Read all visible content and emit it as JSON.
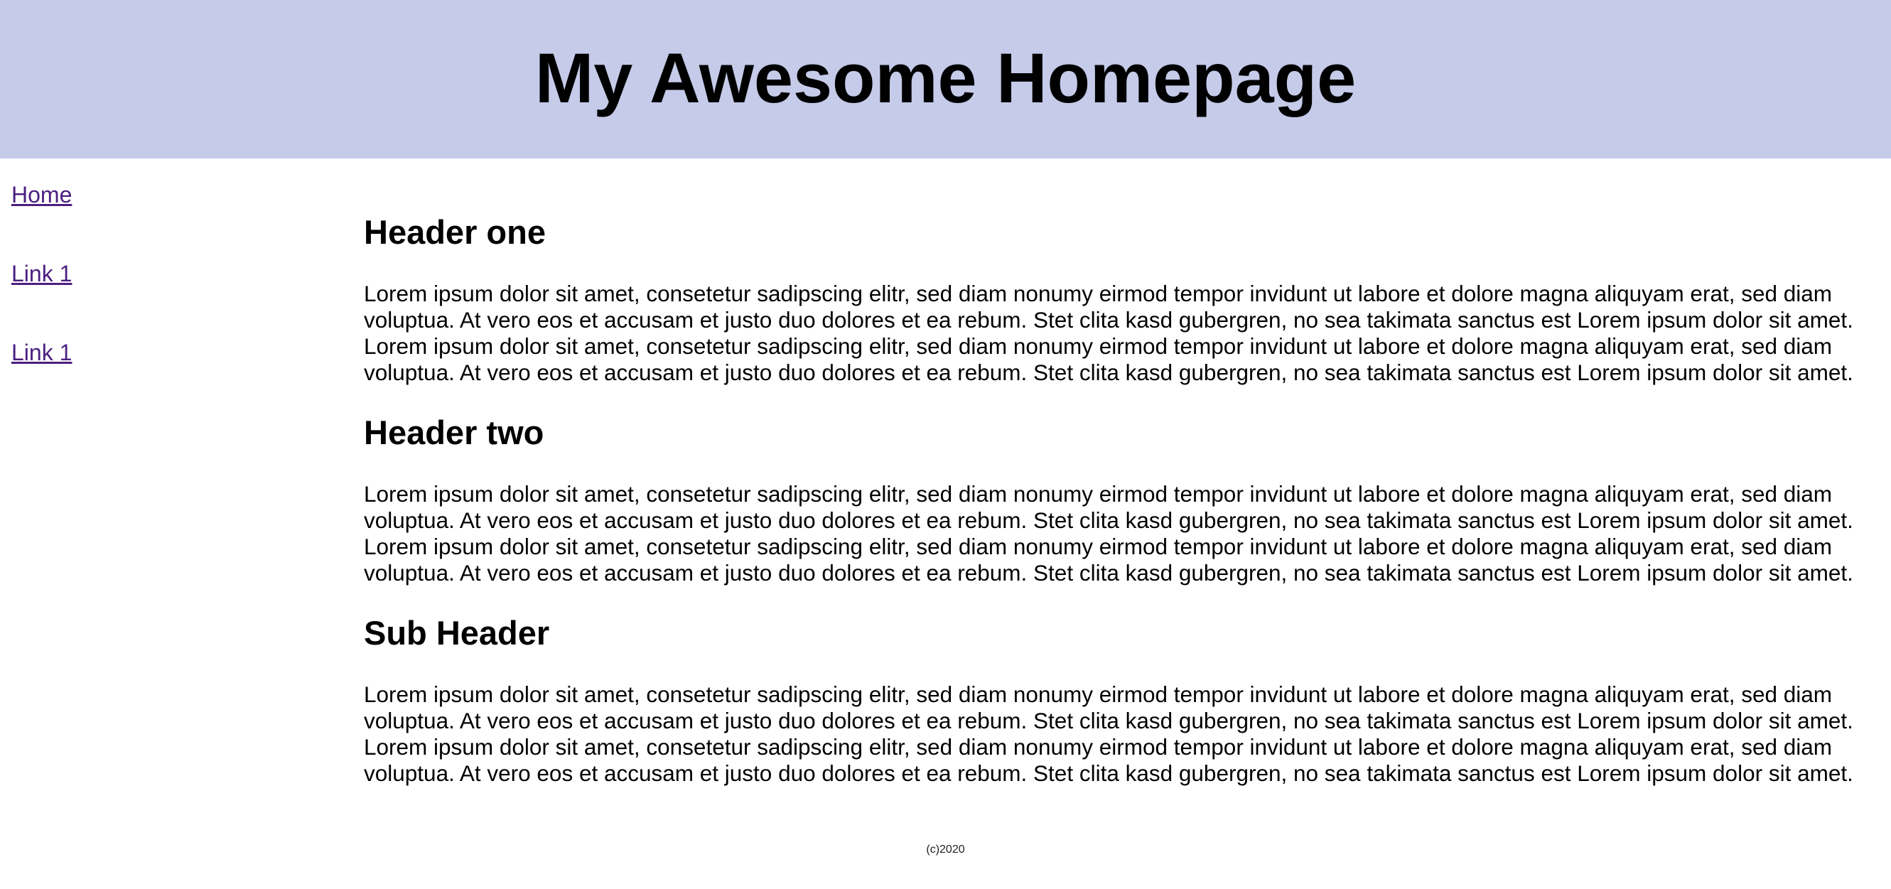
{
  "header": {
    "title": "My Awesome Homepage",
    "background_color": "#c5cbe9"
  },
  "nav": {
    "link_color": "#4b1f80",
    "items": [
      {
        "label": "Home"
      },
      {
        "label": "Link 1"
      },
      {
        "label": "Link 1"
      }
    ]
  },
  "main": {
    "sections": [
      {
        "heading": "Header one",
        "body": "Lorem ipsum dolor sit amet, consetetur sadipscing elitr, sed diam nonumy eirmod tempor invidunt ut labore et dolore magna aliquyam erat, sed diam voluptua. At vero eos et accusam et justo duo dolores et ea rebum. Stet clita kasd gubergren, no sea takimata sanctus est Lorem ipsum dolor sit amet. Lorem ipsum dolor sit amet, consetetur sadipscing elitr, sed diam nonumy eirmod tempor invidunt ut labore et dolore magna aliquyam erat, sed diam voluptua. At vero eos et accusam et justo duo dolores et ea rebum. Stet clita kasd gubergren, no sea takimata sanctus est Lorem ipsum dolor sit amet."
      },
      {
        "heading": "Header two",
        "body": "Lorem ipsum dolor sit amet, consetetur sadipscing elitr, sed diam nonumy eirmod tempor invidunt ut labore et dolore magna aliquyam erat, sed diam voluptua. At vero eos et accusam et justo duo dolores et ea rebum. Stet clita kasd gubergren, no sea takimata sanctus est Lorem ipsum dolor sit amet. Lorem ipsum dolor sit amet, consetetur sadipscing elitr, sed diam nonumy eirmod tempor invidunt ut labore et dolore magna aliquyam erat, sed diam voluptua. At vero eos et accusam et justo duo dolores et ea rebum. Stet clita kasd gubergren, no sea takimata sanctus est Lorem ipsum dolor sit amet."
      },
      {
        "heading": "Sub Header",
        "body": "Lorem ipsum dolor sit amet, consetetur sadipscing elitr, sed diam nonumy eirmod tempor invidunt ut labore et dolore magna aliquyam erat, sed diam voluptua. At vero eos et accusam et justo duo dolores et ea rebum. Stet clita kasd gubergren, no sea takimata sanctus est Lorem ipsum dolor sit amet. Lorem ipsum dolor sit amet, consetetur sadipscing elitr, sed diam nonumy eirmod tempor invidunt ut labore et dolore magna aliquyam erat, sed diam voluptua. At vero eos et accusam et justo duo dolores et ea rebum. Stet clita kasd gubergren, no sea takimata sanctus est Lorem ipsum dolor sit amet."
      }
    ]
  },
  "footer": {
    "text": "(c)2020"
  }
}
